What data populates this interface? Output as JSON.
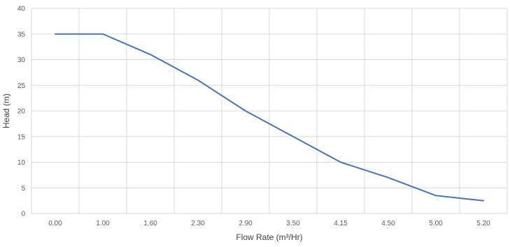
{
  "chart_data": {
    "type": "line",
    "title": "",
    "xlabel": "Flow Rate (m³/Hr)",
    "ylabel": "Head (m)",
    "categories": [
      "0.00",
      "1.00",
      "1.60",
      "2.30",
      "2.90",
      "3.50",
      "4.15",
      "4.50",
      "5.00",
      "5.20"
    ],
    "series": [
      {
        "values": [
          35,
          35,
          31,
          26,
          20,
          15,
          10,
          7,
          3.5,
          2.5
        ]
      }
    ],
    "ylim": [
      0,
      40
    ],
    "yticks": [
      "0",
      "5",
      "10",
      "15",
      "20",
      "25",
      "30",
      "35",
      "40"
    ],
    "grid": true,
    "legend": "none",
    "colors": {
      "series": "#4472c4",
      "grid": "#d9d9d9",
      "text": "#595959"
    }
  }
}
